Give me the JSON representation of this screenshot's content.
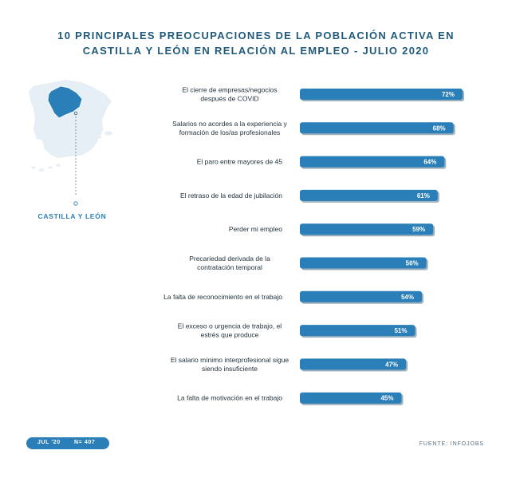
{
  "title": {
    "line1": "10 PRINCIPALES PREOCUPACIONES DE LA POBLACIÓN ACTIVA EN",
    "line2": "CASTILLA Y LEÓN EN RELACIÓN AL EMPLEO - JULIO 2020"
  },
  "map": {
    "region_label": "CASTILLA Y LEÓN",
    "highlight_color": "#2b7fb8",
    "land_color": "#e7eff6"
  },
  "chart_data": {
    "type": "bar",
    "orientation": "horizontal",
    "categories": [
      [
        "El cierre de empresas/negocios",
        "después de COVID"
      ],
      [
        "Salarios no acordes a la experiencia y",
        "formación de los/as profesionales"
      ],
      [
        "El paro entre mayores de 45"
      ],
      [
        "El retraso de la edad de jubilación"
      ],
      [
        "Perder mi empleo"
      ],
      [
        "Precariedad derivada de la",
        "contratación temporal"
      ],
      [
        "La falta de reconocimiento en el trabajo"
      ],
      [
        "El exceso o urgencia de trabajo, el",
        "estrés que produce"
      ],
      [
        "El salario mínimo interprofesional sigue",
        "siendo insuficiente"
      ],
      [
        "La falta de motivación en el trabajo"
      ]
    ],
    "values": [
      72,
      68,
      64,
      61,
      59,
      56,
      54,
      51,
      47,
      45
    ],
    "value_labels": [
      "72%",
      "68%",
      "64%",
      "61%",
      "59%",
      "56%",
      "54%",
      "51%",
      "47%",
      "45%"
    ],
    "unit": "%",
    "bar_color": "#2b7fb8",
    "shadow_color": "#9fb0bd",
    "grid": false,
    "legend": "none"
  },
  "footer": {
    "period": "JUL '20",
    "sample": "N= 407",
    "source": "FUENTE: INFOJOBS"
  }
}
